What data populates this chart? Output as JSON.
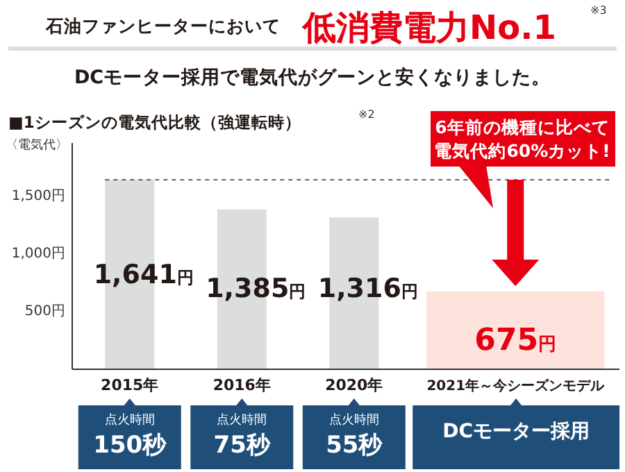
{
  "chart_data": {
    "type": "bar",
    "title": "石油ファンヒーターにおいて",
    "subtitle": "DCモーター採用で電気代がグーンと安くなりました。",
    "ylabel": "〈電気代〉",
    "categories": [
      "2015年",
      "2016年",
      "2020年",
      "2021年～今シーズンモデル"
    ],
    "values": [
      1641,
      1385,
      1316,
      675
    ],
    "colors": [
      "#dcdddd",
      "#dcdddd",
      "#dcdddd",
      "#fde3dc"
    ],
    "value_labels": [
      "1,641円",
      "1,385円",
      "1,316円",
      "675円"
    ],
    "ylim": [
      0,
      1960
    ],
    "yticks": [
      {
        "value": 500,
        "label": "500円"
      },
      {
        "value": 1000,
        "label": "1,000円"
      },
      {
        "value": 1500,
        "label": "1,500円"
      }
    ],
    "ref_lines": [
      {
        "axis": "y",
        "value": 1641,
        "line_style": "dashed",
        "color": "#333333"
      }
    ],
    "annotations": [
      "低消費電力No.1",
      "※3",
      "■1シーズンの電気代比較（強運転時）",
      "※2",
      "6年前の機種に比べて",
      "電気代約60%カット!",
      "点火時間\n150秒",
      "点火時間\n75秒",
      "点火時間\n55秒",
      "DCモーター採用"
    ]
  }
}
